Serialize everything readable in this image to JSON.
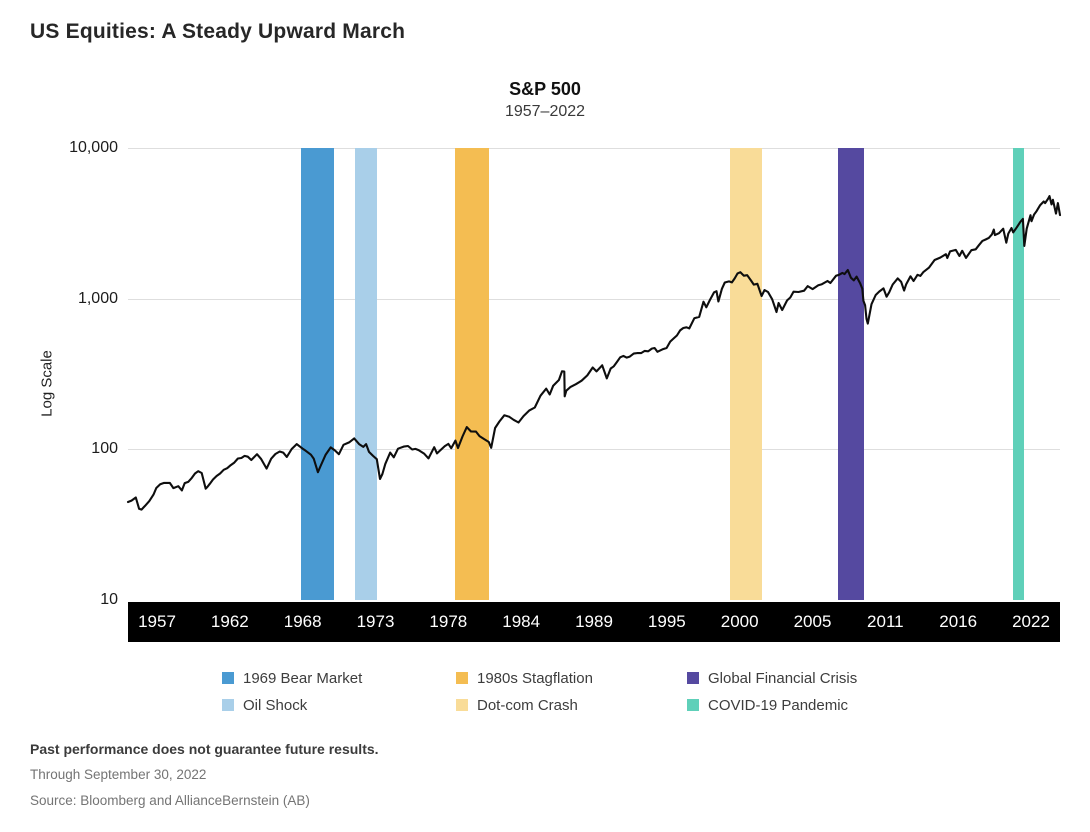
{
  "page": {
    "title": "US Equities: A Steady Upward March",
    "footnotes": {
      "disclaimer": "Past performance does not guarantee future results.",
      "as_of": "Through September 30, 2022",
      "source": "Source: Bloomberg and AllianceBernstein (AB)"
    }
  },
  "chart_data": {
    "type": "line",
    "title": "S&P 500",
    "subtitle": "1957–2022",
    "ylabel": "Log Scale",
    "yscale": "log",
    "ylim": [
      10,
      10000
    ],
    "ytick_values": [
      10000,
      1000,
      100,
      10
    ],
    "ytick_labels": [
      "10,000",
      "1,000",
      "100",
      "10"
    ],
    "xlim": [
      1957.0,
      2022.75
    ],
    "xtick_labels": [
      "1957",
      "1962",
      "1968",
      "1973",
      "1978",
      "1984",
      "1989",
      "1995",
      "2000",
      "2005",
      "2011",
      "2016",
      "2022"
    ],
    "grid": true,
    "line_color": "#0e0e0e",
    "grid_color": "#dedede",
    "axis_bar_color": "#000000",
    "events": [
      {
        "label": "1969 Bear Market",
        "color": "#4A9AD2",
        "from": 1969.2,
        "to": 1971.5
      },
      {
        "label": "Oil Shock",
        "color": "#A9CFE9",
        "from": 1973.0,
        "to": 1974.6
      },
      {
        "label": "1980s Stagflation",
        "color": "#F4BD52",
        "from": 1980.1,
        "to": 1982.5
      },
      {
        "label": "Dot-com Crash",
        "color": "#F9DC98",
        "from": 1999.5,
        "to": 2001.7
      },
      {
        "label": "Global Financial Crisis",
        "color": "#5549A0",
        "from": 2007.1,
        "to": 2008.9
      },
      {
        "label": "COVID-19 Pandemic",
        "color": "#5FD0B9",
        "from": 2019.4,
        "to": 2020.2
      }
    ],
    "series": [
      {
        "name": "S&P 500",
        "points": [
          [
            1957.0,
            44.7
          ],
          [
            1957.25,
            45.7
          ],
          [
            1957.55,
            47.9
          ],
          [
            1957.78,
            40.3
          ],
          [
            1957.95,
            39.8
          ],
          [
            1958.2,
            42.1
          ],
          [
            1958.5,
            45.3
          ],
          [
            1958.8,
            50.1
          ],
          [
            1959.0,
            55.4
          ],
          [
            1959.55,
            59.9
          ],
          [
            1959.95,
            59.9
          ],
          [
            1960.2,
            55.3
          ],
          [
            1960.55,
            56.9
          ],
          [
            1960.8,
            53.4
          ],
          [
            1961.0,
            59.7
          ],
          [
            1961.5,
            64.6
          ],
          [
            1961.95,
            71.6
          ],
          [
            1962.2,
            69.6
          ],
          [
            1962.48,
            54.8
          ],
          [
            1962.6,
            56.3
          ],
          [
            1962.78,
            59.1
          ],
          [
            1963.0,
            63.1
          ],
          [
            1963.5,
            69.1
          ],
          [
            1964.0,
            75.0
          ],
          [
            1964.5,
            81.7
          ],
          [
            1965.0,
            87.6
          ],
          [
            1965.45,
            89.3
          ],
          [
            1965.7,
            85.0
          ],
          [
            1966.1,
            92.9
          ],
          [
            1966.4,
            86.1
          ],
          [
            1966.78,
            74.5
          ],
          [
            1967.1,
            86.6
          ],
          [
            1967.7,
            96.7
          ],
          [
            1968.2,
            89.1
          ],
          [
            1968.55,
            100.5
          ],
          [
            1968.9,
            108.4
          ],
          [
            1969.3,
            101.3
          ],
          [
            1969.55,
            97.7
          ],
          [
            1969.9,
            92.1
          ],
          [
            1970.1,
            86.8
          ],
          [
            1970.4,
            70.5
          ],
          [
            1970.6,
            78.1
          ],
          [
            1970.95,
            92.2
          ],
          [
            1971.3,
            103.0
          ],
          [
            1971.6,
            98.3
          ],
          [
            1971.88,
            92.8
          ],
          [
            1972.2,
            107.2
          ],
          [
            1972.6,
            111.1
          ],
          [
            1972.96,
            118.1
          ],
          [
            1973.3,
            108.4
          ],
          [
            1973.6,
            103.8
          ],
          [
            1973.8,
            108.3
          ],
          [
            1974.0,
            96.1
          ],
          [
            1974.3,
            90.3
          ],
          [
            1974.55,
            86.0
          ],
          [
            1974.78,
            63.5
          ],
          [
            1974.95,
            68.6
          ],
          [
            1975.15,
            80.1
          ],
          [
            1975.5,
            95.2
          ],
          [
            1975.75,
            88.6
          ],
          [
            1976.05,
            100.9
          ],
          [
            1976.45,
            104.3
          ],
          [
            1976.75,
            105.2
          ],
          [
            1977.05,
            99.8
          ],
          [
            1977.5,
            98.8
          ],
          [
            1977.9,
            93.4
          ],
          [
            1978.2,
            87.0
          ],
          [
            1978.6,
            103.3
          ],
          [
            1978.8,
            94.0
          ],
          [
            1979.1,
            99.9
          ],
          [
            1979.6,
            108.6
          ],
          [
            1979.8,
            101.8
          ],
          [
            1980.1,
            114.2
          ],
          [
            1980.28,
            102.1
          ],
          [
            1980.6,
            121.7
          ],
          [
            1980.9,
            140.5
          ],
          [
            1981.2,
            131.3
          ],
          [
            1981.55,
            131.2
          ],
          [
            1981.8,
            122.5
          ],
          [
            1982.1,
            117.3
          ],
          [
            1982.45,
            111.9
          ],
          [
            1982.62,
            102.4
          ],
          [
            1982.9,
            138.5
          ],
          [
            1983.2,
            152.9
          ],
          [
            1983.55,
            168.1
          ],
          [
            1983.9,
            164.4
          ],
          [
            1984.2,
            157.1
          ],
          [
            1984.55,
            150.7
          ],
          [
            1984.9,
            166.1
          ],
          [
            1985.3,
            180.7
          ],
          [
            1985.7,
            189.6
          ],
          [
            1986.1,
            226.9
          ],
          [
            1986.5,
            252.9
          ],
          [
            1986.75,
            231.3
          ],
          [
            1987.0,
            264.5
          ],
          [
            1987.4,
            288.4
          ],
          [
            1987.62,
            329.8
          ],
          [
            1987.78,
            328.0
          ],
          [
            1987.81,
            224.8
          ],
          [
            1987.92,
            245.0
          ],
          [
            1988.2,
            258.9
          ],
          [
            1988.6,
            270.7
          ],
          [
            1989.0,
            285.4
          ],
          [
            1989.4,
            309.6
          ],
          [
            1989.78,
            349.2
          ],
          [
            1990.05,
            329.1
          ],
          [
            1990.45,
            361.2
          ],
          [
            1990.78,
            295.5
          ],
          [
            1991.05,
            343.9
          ],
          [
            1991.5,
            380.2
          ],
          [
            1991.95,
            417.1
          ],
          [
            1992.4,
            412.5
          ],
          [
            1992.95,
            435.7
          ],
          [
            1993.45,
            450.2
          ],
          [
            1993.95,
            466.4
          ],
          [
            1994.15,
            470.4
          ],
          [
            1994.35,
            444.3
          ],
          [
            1994.75,
            462.7
          ],
          [
            1995.0,
            470.4
          ],
          [
            1995.5,
            544.8
          ],
          [
            1995.95,
            615.9
          ],
          [
            1996.4,
            645.5
          ],
          [
            1996.6,
            635.0
          ],
          [
            1996.95,
            740.7
          ],
          [
            1997.3,
            757.1
          ],
          [
            1997.6,
            954.3
          ],
          [
            1997.8,
            876.0
          ],
          [
            1998.05,
            980.3
          ],
          [
            1998.35,
            1101.8
          ],
          [
            1998.52,
            1120.7
          ],
          [
            1998.65,
            957.3
          ],
          [
            1998.9,
            1163.6
          ],
          [
            1999.1,
            1279.6
          ],
          [
            1999.4,
            1301.8
          ],
          [
            1999.6,
            1282.7
          ],
          [
            1999.8,
            1362.9
          ],
          [
            2000.0,
            1469.3
          ],
          [
            2000.2,
            1498.6
          ],
          [
            2000.45,
            1420.6
          ],
          [
            2000.68,
            1430.8
          ],
          [
            2000.95,
            1320.3
          ],
          [
            2001.15,
            1239.9
          ],
          [
            2001.4,
            1255.8
          ],
          [
            2001.7,
            1040.9
          ],
          [
            2001.9,
            1139.5
          ],
          [
            2002.15,
            1106.7
          ],
          [
            2002.45,
            989.8
          ],
          [
            2002.75,
            815.3
          ],
          [
            2002.9,
            936.3
          ],
          [
            2003.15,
            841.2
          ],
          [
            2003.5,
            974.5
          ],
          [
            2003.95,
            1111.9
          ],
          [
            2004.3,
            1107.3
          ],
          [
            2004.7,
            1130.2
          ],
          [
            2004.95,
            1211.9
          ],
          [
            2005.3,
            1156.9
          ],
          [
            2005.7,
            1228.8
          ],
          [
            2005.95,
            1248.3
          ],
          [
            2006.35,
            1310.6
          ],
          [
            2006.55,
            1270.1
          ],
          [
            2006.95,
            1418.3
          ],
          [
            2007.4,
            1482.4
          ],
          [
            2007.55,
            1455.3
          ],
          [
            2007.78,
            1549.4
          ],
          [
            2008.0,
            1378.6
          ],
          [
            2008.2,
            1322.7
          ],
          [
            2008.4,
            1400.4
          ],
          [
            2008.65,
            1267.4
          ],
          [
            2008.8,
            1166.4
          ],
          [
            2008.88,
            968.8
          ],
          [
            2009.0,
            903.3
          ],
          [
            2009.1,
            735.1
          ],
          [
            2009.19,
            683.0
          ],
          [
            2009.45,
            919.1
          ],
          [
            2009.75,
            1057.1
          ],
          [
            2010.0,
            1115.1
          ],
          [
            2010.3,
            1169.4
          ],
          [
            2010.52,
            1030.7
          ],
          [
            2010.7,
            1101.6
          ],
          [
            2010.95,
            1241.5
          ],
          [
            2011.3,
            1363.6
          ],
          [
            2011.55,
            1292.3
          ],
          [
            2011.75,
            1131.4
          ],
          [
            2011.9,
            1246.9
          ],
          [
            2012.2,
            1408.5
          ],
          [
            2012.42,
            1310.3
          ],
          [
            2012.7,
            1440.7
          ],
          [
            2012.9,
            1416.2
          ],
          [
            2013.1,
            1498.1
          ],
          [
            2013.5,
            1606.3
          ],
          [
            2013.9,
            1805.8
          ],
          [
            2014.3,
            1872.3
          ],
          [
            2014.7,
            1972.3
          ],
          [
            2014.8,
            1862.0
          ],
          [
            2015.0,
            2058.9
          ],
          [
            2015.4,
            2107.4
          ],
          [
            2015.65,
            1920.0
          ],
          [
            2015.85,
            2079.4
          ],
          [
            2016.12,
            1864.8
          ],
          [
            2016.5,
            2098.9
          ],
          [
            2016.8,
            2126.2
          ],
          [
            2017.05,
            2278.9
          ],
          [
            2017.5,
            2470.3
          ],
          [
            2017.95,
            2673.6
          ],
          [
            2018.08,
            2872.9
          ],
          [
            2018.16,
            2640.9
          ],
          [
            2018.45,
            2718.4
          ],
          [
            2018.74,
            2914.0
          ],
          [
            2018.96,
            2351.1
          ],
          [
            2019.1,
            2704.1
          ],
          [
            2019.33,
            2945.8
          ],
          [
            2019.45,
            2752.1
          ],
          [
            2019.7,
            2976.7
          ],
          [
            2019.95,
            3230.8
          ],
          [
            2020.13,
            3386.2
          ],
          [
            2020.23,
            2237.4
          ],
          [
            2020.4,
            2912.4
          ],
          [
            2020.67,
            3580.8
          ],
          [
            2020.74,
            3269.0
          ],
          [
            2020.92,
            3621.6
          ],
          [
            2021.1,
            3811.2
          ],
          [
            2021.35,
            4181.2
          ],
          [
            2021.6,
            4411.8
          ],
          [
            2021.7,
            4307.5
          ],
          [
            2021.9,
            4594.6
          ],
          [
            2022.01,
            4796.6
          ],
          [
            2022.15,
            4225.5
          ],
          [
            2022.25,
            4530.4
          ],
          [
            2022.47,
            3666.8
          ],
          [
            2022.6,
            4305.2
          ],
          [
            2022.75,
            3585.6
          ]
        ]
      }
    ]
  }
}
